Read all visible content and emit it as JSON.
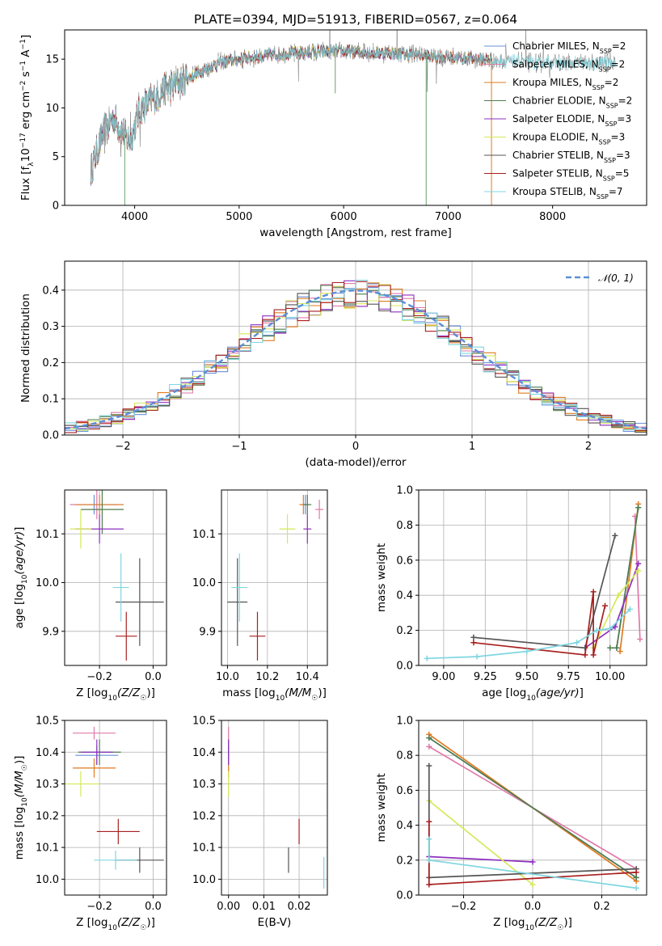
{
  "figure_title": "PLATE=0394, MJD=51913, FIBERID=0567, z=0.064",
  "colors": {
    "chabrier_miles": "#6a8fd8",
    "salpeter_miles": "#e07aa8",
    "kroupa_miles": "#e07b20",
    "chabrier_elodie": "#4f7d4f",
    "salpeter_elodie": "#8e2fc0",
    "kroupa_elodie": "#d6e85a",
    "chabrier_stelib": "#555555",
    "salpeter_stelib": "#a81f1f",
    "kroupa_stelib": "#7fd6e0",
    "normal_curve": "#5b8fd6"
  },
  "legend": [
    {
      "key": "chabrier_miles",
      "name": "Chabrier MILES, N",
      "sub": "SSP",
      "n": "=2"
    },
    {
      "key": "salpeter_miles",
      "name": "Salpeter MILES, N",
      "sub": "SSP",
      "n": "=2"
    },
    {
      "key": "kroupa_miles",
      "name": "Kroupa MILES, N",
      "sub": "SSP",
      "n": "=2"
    },
    {
      "key": "chabrier_elodie",
      "name": "Chabrier ELODIE, N",
      "sub": "SSP",
      "n": "=2"
    },
    {
      "key": "salpeter_elodie",
      "name": "Salpeter ELODIE, N",
      "sub": "SSP",
      "n": "=3"
    },
    {
      "key": "kroupa_elodie",
      "name": "Kroupa ELODIE, N",
      "sub": "SSP",
      "n": "=3"
    },
    {
      "key": "chabrier_stelib",
      "name": "Chabrier STELIB, N",
      "sub": "SSP",
      "n": "=3"
    },
    {
      "key": "salpeter_stelib",
      "name": "Salpeter STELIB, N",
      "sub": "SSP",
      "n": "=5"
    },
    {
      "key": "kroupa_stelib",
      "name": "Kroupa STELIB, N",
      "sub": "SSP",
      "n": "=7"
    }
  ],
  "chart_data": [
    {
      "id": "spectrum",
      "type": "line",
      "xlabel": "wavelength [Angstrom, rest frame]",
      "ylabel": "Flux [f_λ 10^-17 erg cm^-2 s^-1 A^-1]",
      "xlim": [
        3330,
        8900
      ],
      "ylim": [
        0,
        18
      ],
      "xticks": [
        4000,
        5000,
        6000,
        7000,
        8000
      ],
      "yticks": [
        0,
        5,
        10,
        15
      ],
      "continuum": [
        [
          3580,
          3.5
        ],
        [
          3700,
          7.5
        ],
        [
          3800,
          9
        ],
        [
          3950,
          6.5
        ],
        [
          4050,
          9.8
        ],
        [
          4300,
          12
        ],
        [
          4500,
          13
        ],
        [
          4800,
          14.6
        ],
        [
          5100,
          15.2
        ],
        [
          5500,
          15.6
        ],
        [
          6000,
          15.8
        ],
        [
          6500,
          15.6
        ],
        [
          7000,
          15.2
        ],
        [
          7500,
          14.8
        ],
        [
          8000,
          14.6
        ],
        [
          8400,
          14.5
        ],
        [
          8600,
          14.8
        ]
      ],
      "models_end": 7420,
      "legend_position": "upper right"
    },
    {
      "id": "residuals",
      "type": "histogram",
      "xlabel": "(data-model)/error",
      "ylabel": "Normed distribution",
      "xlim": [
        -2.5,
        2.5
      ],
      "ylim": [
        0,
        0.48
      ],
      "xticks": [
        -2,
        -1,
        0,
        1,
        2
      ],
      "yticks": [
        0.0,
        0.1,
        0.2,
        0.3,
        0.4
      ],
      "curve_label": "N(0,1)",
      "bin_width": 0.1,
      "legend_position": "upper right"
    },
    {
      "id": "age_vs_Z",
      "type": "errorbar",
      "xlabel": "Z [log10(Z/Z☉)]",
      "ylabel": "age  [log10(age/yr)]",
      "xlim": [
        -0.33,
        0.05
      ],
      "ylim": [
        9.83,
        10.19
      ],
      "xticks": [
        -0.2,
        0.0
      ],
      "yticks": [
        9.9,
        10.0,
        10.1
      ],
      "points": [
        {
          "key": "chabrier_miles",
          "x": -0.22,
          "xerr": 0.09,
          "y": 10.16,
          "yerr": 0.02
        },
        {
          "key": "salpeter_miles",
          "x": -0.21,
          "xerr": 0.1,
          "y": 10.16,
          "yerr": 0.03
        },
        {
          "key": "kroupa_miles",
          "x": -0.2,
          "xerr": 0.09,
          "y": 10.16,
          "yerr": 0.02
        },
        {
          "key": "chabrier_elodie",
          "x": -0.19,
          "xerr": 0.08,
          "y": 10.15,
          "yerr": 0.05
        },
        {
          "key": "salpeter_elodie",
          "x": -0.2,
          "xerr": 0.09,
          "y": 10.11,
          "yerr": 0.03
        },
        {
          "key": "kroupa_elodie",
          "x": -0.27,
          "xerr": 0.04,
          "y": 10.11,
          "yerr": 0.04
        },
        {
          "key": "chabrier_stelib",
          "x": -0.05,
          "xerr": 0.09,
          "y": 9.96,
          "yerr": 0.09
        },
        {
          "key": "salpeter_stelib",
          "x": -0.1,
          "xerr": 0.04,
          "y": 9.89,
          "yerr": 0.05
        },
        {
          "key": "kroupa_stelib",
          "x": -0.12,
          "xerr": 0.03,
          "y": 9.99,
          "yerr": 0.07
        }
      ]
    },
    {
      "id": "age_vs_mass",
      "type": "errorbar",
      "xlabel": "mass [log10(M/M☉)]",
      "ylabel": "",
      "xlim": [
        9.97,
        10.5
      ],
      "ylim": [
        9.83,
        10.19
      ],
      "xticks": [
        10.0,
        10.2,
        10.4
      ],
      "yticks": [
        9.9,
        10.0,
        10.1
      ],
      "points": [
        {
          "key": "chabrier_miles",
          "x": 10.39,
          "xerr": 0.02,
          "y": 10.16,
          "yerr": 0.02
        },
        {
          "key": "salpeter_miles",
          "x": 10.46,
          "xerr": 0.02,
          "y": 10.15,
          "yerr": 0.02
        },
        {
          "key": "kroupa_miles",
          "x": 10.38,
          "xerr": 0.02,
          "y": 10.16,
          "yerr": 0.02
        },
        {
          "key": "chabrier_elodie",
          "x": 10.4,
          "xerr": 0.02,
          "y": 10.16,
          "yerr": 0.02
        },
        {
          "key": "salpeter_elodie",
          "x": 10.4,
          "xerr": 0.02,
          "y": 10.11,
          "yerr": 0.03
        },
        {
          "key": "kroupa_elodie",
          "x": 10.3,
          "xerr": 0.04,
          "y": 10.11,
          "yerr": 0.03
        },
        {
          "key": "chabrier_stelib",
          "x": 10.05,
          "xerr": 0.05,
          "y": 9.96,
          "yerr": 0.09
        },
        {
          "key": "salpeter_stelib",
          "x": 10.15,
          "xerr": 0.04,
          "y": 9.89,
          "yerr": 0.05
        },
        {
          "key": "kroupa_stelib",
          "x": 10.06,
          "xerr": 0.04,
          "y": 9.99,
          "yerr": 0.07
        }
      ]
    },
    {
      "id": "mass_weight_vs_age",
      "type": "line",
      "xlabel": "age  [log10(age/yr)]",
      "ylabel": "mass weight",
      "xlim": [
        8.85,
        10.22
      ],
      "ylim": [
        0,
        1.0
      ],
      "xticks": [
        9.0,
        9.25,
        9.5,
        9.75,
        10.0
      ],
      "yticks": [
        0.0,
        0.2,
        0.4,
        0.6,
        0.8,
        1.0
      ],
      "series": [
        {
          "key": "chabrier_miles",
          "x": [
            10.04,
            10.17
          ],
          "y": [
            0.1,
            0.9
          ]
        },
        {
          "key": "salpeter_miles",
          "x": [
            10.15,
            10.18
          ],
          "y": [
            0.85,
            0.15
          ]
        },
        {
          "key": "kroupa_miles",
          "x": [
            10.06,
            10.17
          ],
          "y": [
            0.08,
            0.92
          ]
        },
        {
          "key": "chabrier_elodie",
          "x": [
            10.0,
            10.04,
            10.17
          ],
          "y": [
            0.1,
            0.1,
            0.9
          ]
        },
        {
          "key": "salpeter_elodie",
          "x": [
            9.85,
            10.03,
            10.17
          ],
          "y": [
            0.1,
            0.22,
            0.58
          ]
        },
        {
          "key": "kroupa_elodie",
          "x": [
            9.9,
            10.05,
            10.17
          ],
          "y": [
            0.1,
            0.4,
            0.54
          ]
        },
        {
          "key": "chabrier_stelib",
          "x": [
            9.18,
            9.85,
            10.03
          ],
          "y": [
            0.16,
            0.1,
            0.74
          ]
        },
        {
          "key": "salpeter_stelib",
          "x": [
            9.18,
            9.85,
            9.9,
            9.9,
            9.97
          ],
          "y": [
            0.13,
            0.06,
            0.42,
            0.06,
            0.34
          ]
        },
        {
          "key": "kroupa_stelib",
          "x": [
            8.9,
            9.2,
            9.5,
            9.8,
            9.92,
            10.0,
            10.12
          ],
          "y": [
            0.04,
            0.05,
            0.08,
            0.13,
            0.2,
            0.21,
            0.32
          ]
        }
      ]
    },
    {
      "id": "mass_vs_Z",
      "type": "errorbar",
      "xlabel": "Z [log10(Z/Z☉)]",
      "ylabel": "mass [log10(M/M☉)]",
      "xlim": [
        -0.33,
        0.05
      ],
      "ylim": [
        9.95,
        10.5
      ],
      "xticks": [
        -0.2,
        0.0
      ],
      "yticks": [
        10.0,
        10.1,
        10.2,
        10.3,
        10.4,
        10.5
      ],
      "points": [
        {
          "key": "chabrier_miles",
          "x": -0.21,
          "xerr": 0.08,
          "y": 10.39,
          "yerr": 0.03
        },
        {
          "key": "salpeter_miles",
          "x": -0.22,
          "xerr": 0.08,
          "y": 10.46,
          "yerr": 0.02
        },
        {
          "key": "kroupa_miles",
          "x": -0.22,
          "xerr": 0.08,
          "y": 10.35,
          "yerr": 0.03
        },
        {
          "key": "chabrier_elodie",
          "x": -0.2,
          "xerr": 0.08,
          "y": 10.4,
          "yerr": 0.04
        },
        {
          "key": "salpeter_elodie",
          "x": -0.21,
          "xerr": 0.06,
          "y": 10.4,
          "yerr": 0.04
        },
        {
          "key": "kroupa_elodie",
          "x": -0.27,
          "xerr": 0.07,
          "y": 10.3,
          "yerr": 0.04
        },
        {
          "key": "chabrier_stelib",
          "x": -0.05,
          "xerr": 0.09,
          "y": 10.06,
          "yerr": 0.04
        },
        {
          "key": "salpeter_stelib",
          "x": -0.13,
          "xerr": 0.08,
          "y": 10.15,
          "yerr": 0.04
        },
        {
          "key": "kroupa_stelib",
          "x": -0.14,
          "xerr": 0.08,
          "y": 10.06,
          "yerr": 0.03
        }
      ]
    },
    {
      "id": "mass_vs_ebv",
      "type": "errorbar",
      "xlabel": "E(B-V)",
      "ylabel": "",
      "xlim": [
        -0.002,
        0.028
      ],
      "ylim": [
        9.95,
        10.5
      ],
      "xticks": [
        0.0,
        0.01,
        0.02
      ],
      "yticks": [
        10.0,
        10.1,
        10.2,
        10.3,
        10.4,
        10.5
      ],
      "points": [
        {
          "key": "chabrier_miles",
          "x": 0.0,
          "xerr": 0.0,
          "y": 10.39,
          "yerr": 0.03
        },
        {
          "key": "salpeter_miles",
          "x": 0.0,
          "xerr": 0.0,
          "y": 10.46,
          "yerr": 0.02
        },
        {
          "key": "kroupa_miles",
          "x": 0.0,
          "xerr": 0.0,
          "y": 10.35,
          "yerr": 0.03
        },
        {
          "key": "chabrier_elodie",
          "x": 0.0,
          "xerr": 0.0,
          "y": 10.4,
          "yerr": 0.04
        },
        {
          "key": "salpeter_elodie",
          "x": 0.0,
          "xerr": 0.0,
          "y": 10.4,
          "yerr": 0.04
        },
        {
          "key": "kroupa_elodie",
          "x": 0.0,
          "xerr": 0.0,
          "y": 10.3,
          "yerr": 0.04
        },
        {
          "key": "chabrier_stelib",
          "x": 0.017,
          "xerr": 0.0,
          "y": 10.06,
          "yerr": 0.04
        },
        {
          "key": "salpeter_stelib",
          "x": 0.02,
          "xerr": 0.0,
          "y": 10.15,
          "yerr": 0.04
        },
        {
          "key": "kroupa_stelib",
          "x": 0.027,
          "xerr": 0.0,
          "y": 10.02,
          "yerr": 0.05
        }
      ]
    },
    {
      "id": "mass_weight_vs_Z",
      "type": "line",
      "xlabel": "Z [log10(Z/Z☉)]",
      "ylabel": "mass weight",
      "xlim": [
        -0.33,
        0.33
      ],
      "ylim": [
        0,
        1.0
      ],
      "xticks": [
        -0.2,
        0.0,
        0.2
      ],
      "yticks": [
        0.0,
        0.2,
        0.4,
        0.6,
        0.8,
        1.0
      ],
      "series": [
        {
          "key": "chabrier_miles",
          "x": [
            -0.3,
            0.3
          ],
          "y": [
            0.9,
            0.1
          ]
        },
        {
          "key": "salpeter_miles",
          "x": [
            -0.3,
            0.3
          ],
          "y": [
            0.85,
            0.15
          ]
        },
        {
          "key": "kroupa_miles",
          "x": [
            -0.3,
            0.3
          ],
          "y": [
            0.92,
            0.08
          ]
        },
        {
          "key": "chabrier_elodie",
          "x": [
            -0.3,
            0.3
          ],
          "y": [
            0.9,
            0.1
          ]
        },
        {
          "key": "salpeter_elodie",
          "x": [
            -0.3,
            0.0
          ],
          "y": [
            0.22,
            0.19
          ]
        },
        {
          "key": "kroupa_elodie",
          "x": [
            -0.3,
            0.0
          ],
          "y": [
            0.54,
            0.06
          ]
        },
        {
          "key": "chabrier_stelib",
          "x": [
            -0.3,
            -0.3,
            0.3
          ],
          "y": [
            0.74,
            0.1,
            0.15
          ]
        },
        {
          "key": "salpeter_stelib",
          "x": [
            -0.3,
            -0.3,
            0.3
          ],
          "y": [
            0.42,
            0.06,
            0.13
          ]
        },
        {
          "key": "kroupa_stelib",
          "x": [
            -0.3,
            -0.3,
            0.3
          ],
          "y": [
            0.32,
            0.2,
            0.04
          ]
        }
      ]
    }
  ]
}
